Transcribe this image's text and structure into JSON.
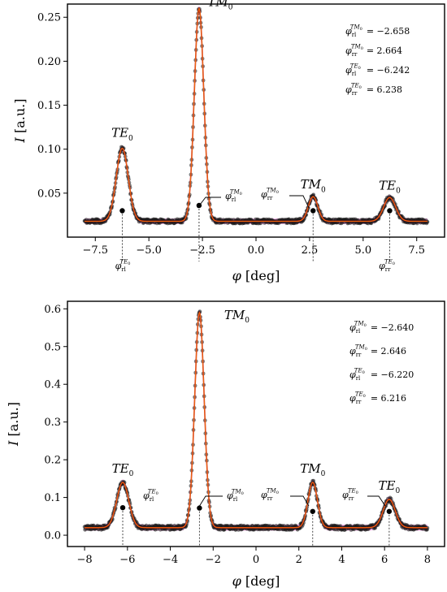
{
  "chart_data": [
    {
      "type": "line",
      "title": "",
      "xlabel": "φ [deg]",
      "ylabel": "I [a.u.]",
      "xlim": [
        -8.8,
        8.8
      ],
      "ylim": [
        0.0,
        0.265
      ],
      "xticks": [
        -7.5,
        -5.0,
        -2.5,
        0.0,
        2.5,
        5.0,
        7.5
      ],
      "xtick_labels": [
        "−7.5",
        "−5.0",
        "−2.5",
        "0.0",
        "2.5",
        "5.0",
        "7.5"
      ],
      "yticks": [
        0.05,
        0.1,
        0.15,
        0.2,
        0.25
      ],
      "ytick_labels": [
        "0.05",
        "0.10",
        "0.15",
        "0.20",
        "0.25"
      ],
      "baseline": 0.018,
      "peaks": [
        {
          "mode": "TE",
          "x": -6.242,
          "y": 0.101,
          "label": "TE0",
          "marker_label": "φrl^TE0",
          "marker_y": 0.03
        },
        {
          "mode": "TM",
          "x": -2.658,
          "y": 0.26,
          "label": "TM0",
          "marker_label": "φrl^TM0",
          "marker_y": 0.036
        },
        {
          "mode": "TM",
          "x": 2.664,
          "y": 0.046,
          "label": "TM0",
          "marker_label": "φrr^TM0",
          "marker_y": 0.03
        },
        {
          "mode": "TE",
          "x": 6.238,
          "y": 0.045,
          "label": "TE0",
          "marker_label": "φrr^TE0",
          "marker_y": 0.03
        }
      ],
      "annotations": [
        {
          "text": "φrl^TM0 = −2.658"
        },
        {
          "text": "φrr^TM0 = 2.664"
        },
        {
          "text": "φrl^TE0 = −6.242"
        },
        {
          "text": "φrr^TE0 = 6.238"
        }
      ],
      "series": [
        {
          "marker": "circle",
          "color": "#1a1a1a"
        },
        {
          "style": "line",
          "color": "#d11a1a"
        }
      ],
      "colors": {
        "points": "#1a1a1a",
        "fit": "#d11a1a",
        "band": "#f06ad6"
      }
    },
    {
      "type": "line",
      "title": "",
      "xlabel": "φ [deg]",
      "ylabel": "I [a.u.]",
      "xlim": [
        -8.8,
        8.8
      ],
      "ylim": [
        -0.03,
        0.62
      ],
      "xticks": [
        -8,
        -6,
        -4,
        -2,
        0,
        2,
        4,
        6,
        8
      ],
      "xtick_labels": [
        "−8",
        "−6",
        "−4",
        "−2",
        "0",
        "2",
        "4",
        "6",
        "8"
      ],
      "yticks": [
        0.0,
        0.1,
        0.2,
        0.3,
        0.4,
        0.5,
        0.6
      ],
      "ytick_labels": [
        "0.0",
        "0.1",
        "0.2",
        "0.3",
        "0.4",
        "0.5",
        "0.6"
      ],
      "baseline": 0.02,
      "peaks": [
        {
          "mode": "TE",
          "x": -6.22,
          "y": 0.14,
          "label": "TE0",
          "marker_label": "φrl^TE0",
          "marker_y": 0.073
        },
        {
          "mode": "TM",
          "x": -2.64,
          "y": 0.59,
          "label": "TM0",
          "marker_label": "φrl^TM0",
          "marker_y": 0.072
        },
        {
          "mode": "TM",
          "x": 2.646,
          "y": 0.14,
          "label": "TM0",
          "marker_label": "φrr^TM0",
          "marker_y": 0.063
        },
        {
          "mode": "TE",
          "x": 6.216,
          "y": 0.095,
          "label": "TE0",
          "marker_label": "φrr^TE0",
          "marker_y": 0.063
        }
      ],
      "annotations": [
        {
          "text": "φrl^TM0 = −2.640"
        },
        {
          "text": "φrr^TM0 = 2.646"
        },
        {
          "text": "φrl^TE0 = −6.220"
        },
        {
          "text": "φrr^TE0 = 6.216"
        }
      ],
      "series": [
        {
          "marker": "circle",
          "color": "#1a1a1a"
        },
        {
          "style": "line",
          "color": "#d11a1a"
        }
      ],
      "colors": {
        "points": "#1a1a1a",
        "fit": "#d11a1a",
        "band": "#f06ad6"
      }
    }
  ]
}
